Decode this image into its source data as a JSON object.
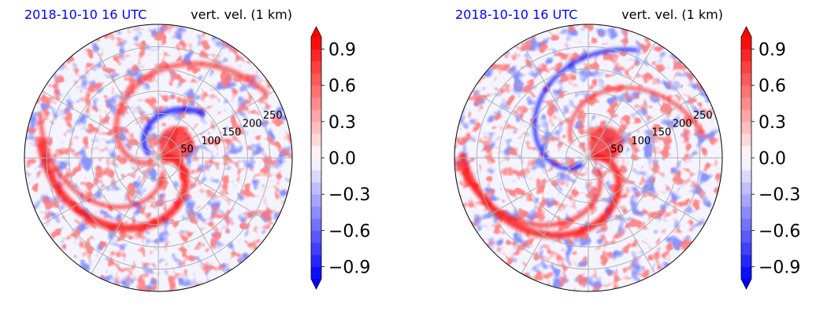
{
  "chart_data": [
    {
      "type": "heatmap",
      "projection": "polar",
      "title_left": "2018-10-10 16 UTC",
      "title_right": "vert. vel. (1 km)",
      "radial_ticks": [
        50,
        100,
        150,
        200,
        250
      ],
      "r_max": 300,
      "angular_grid_deg": 30,
      "colorbar": {
        "ticks": [
          -0.9,
          -0.6,
          -0.3,
          0.0,
          0.3,
          0.6,
          0.9
        ],
        "tick_labels": [
          "−0.9",
          "−0.6",
          "−0.3",
          "0.0",
          "0.3",
          "0.6",
          "0.9"
        ],
        "vmin": -1.0,
        "vmax": 1.0,
        "extend": "both",
        "colormap": "bwr"
      }
    },
    {
      "type": "heatmap",
      "projection": "polar",
      "title_left": "2018-10-10 16 UTC",
      "title_right": "vert. vel. (1 km)",
      "radial_ticks": [
        50,
        100,
        150,
        200,
        250
      ],
      "r_max": 300,
      "angular_grid_deg": 30,
      "colorbar": {
        "ticks": [
          -0.9,
          -0.6,
          -0.3,
          0.0,
          0.3,
          0.6,
          0.9
        ],
        "tick_labels": [
          "−0.9",
          "−0.6",
          "−0.3",
          "0.0",
          "0.3",
          "0.6",
          "0.9"
        ],
        "vmin": -1.0,
        "vmax": 1.0,
        "extend": "both",
        "colormap": "bwr"
      }
    }
  ],
  "colors": {
    "title_date": "#0000ff",
    "grid": "#b0b0b0",
    "cold": "#0000ff",
    "warm": "#ff0000"
  }
}
